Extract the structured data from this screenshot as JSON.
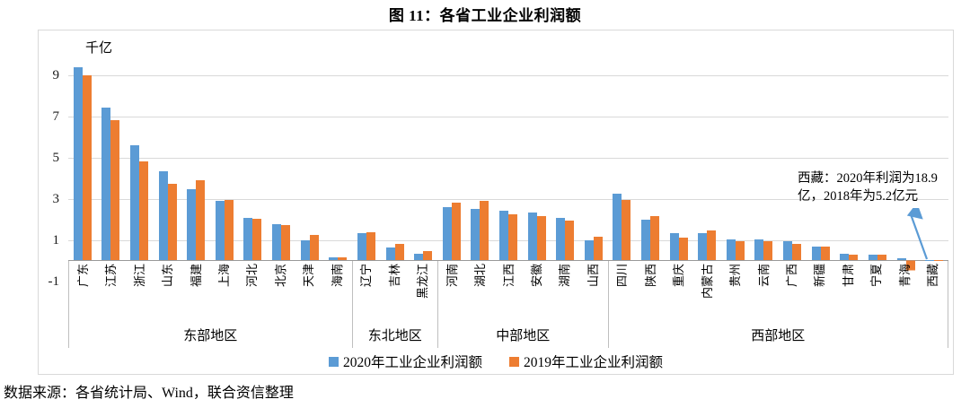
{
  "figure": {
    "title": "图 11：各省工业企业利润额",
    "source_note": "数据来源：各省统计局、Wind，联合资信整理"
  },
  "annotation": {
    "line1": "西藏：2020年利润为18.9",
    "line2": "亿，2018年为5.2亿元",
    "full_text": "西藏：2020年利润为18.9亿，2018年为5.2亿元"
  },
  "chart_data": {
    "type": "bar",
    "title": "图 11：各省工业企业利润额",
    "unit_label": "千亿",
    "ylabel": "千亿",
    "ylim": [
      -1,
      10
    ],
    "y_ticks": [
      9,
      7,
      5,
      3,
      1,
      -1
    ],
    "grid_values": [
      1,
      3,
      5,
      7,
      9
    ],
    "legend_position": "bottom",
    "series": [
      {
        "name": "2020年工业企业利润额",
        "color": "#5B9BD5"
      },
      {
        "name": "2019年工业企业利润额",
        "color": "#ED7D31"
      }
    ],
    "groups": [
      {
        "label": "东部地区",
        "provinces": [
          {
            "name": "广东",
            "values": [
              9.35,
              8.95
            ]
          },
          {
            "name": "江苏",
            "values": [
              7.4,
              6.8
            ]
          },
          {
            "name": "浙江",
            "values": [
              5.55,
              4.8
            ]
          },
          {
            "name": "山东",
            "values": [
              4.3,
              3.7
            ]
          },
          {
            "name": "福建",
            "values": [
              3.45,
              3.85
            ]
          },
          {
            "name": "上海",
            "values": [
              2.85,
              2.9
            ]
          },
          {
            "name": "河北",
            "values": [
              2.05,
              2.0
            ]
          },
          {
            "name": "北京",
            "values": [
              1.75,
              1.7
            ]
          },
          {
            "name": "天津",
            "values": [
              0.95,
              1.2
            ]
          },
          {
            "name": "海南",
            "values": [
              0.12,
              0.15
            ]
          }
        ]
      },
      {
        "label": "东北地区",
        "provinces": [
          {
            "name": "辽宁",
            "values": [
              1.3,
              1.35
            ]
          },
          {
            "name": "吉林",
            "values": [
              0.6,
              0.8
            ]
          },
          {
            "name": "黑龙江",
            "values": [
              0.3,
              0.45
            ]
          }
        ]
      },
      {
        "label": "中部地区",
        "provinces": [
          {
            "name": "河南",
            "values": [
              2.55,
              2.8
            ]
          },
          {
            "name": "湖北",
            "values": [
              2.5,
              2.85
            ]
          },
          {
            "name": "江西",
            "values": [
              2.4,
              2.2
            ]
          },
          {
            "name": "安徽",
            "values": [
              2.3,
              2.15
            ]
          },
          {
            "name": "湖南",
            "values": [
              2.05,
              1.9
            ]
          },
          {
            "name": "山西",
            "values": [
              0.95,
              1.15
            ]
          }
        ]
      },
      {
        "label": "西部地区",
        "provinces": [
          {
            "name": "四川",
            "values": [
              3.2,
              2.9
            ]
          },
          {
            "name": "陕西",
            "values": [
              1.95,
              2.15
            ]
          },
          {
            "name": "重庆",
            "values": [
              1.3,
              1.1
            ]
          },
          {
            "name": "内蒙古",
            "values": [
              1.3,
              1.45
            ]
          },
          {
            "name": "贵州",
            "values": [
              1.0,
              0.9
            ]
          },
          {
            "name": "云南",
            "values": [
              1.0,
              0.9
            ]
          },
          {
            "name": "广西",
            "values": [
              0.9,
              0.8
            ]
          },
          {
            "name": "新疆",
            "values": [
              0.65,
              0.65
            ]
          },
          {
            "name": "甘肃",
            "values": [
              0.3,
              0.28
            ]
          },
          {
            "name": "宁夏",
            "values": [
              0.25,
              0.28
            ]
          },
          {
            "name": "青海",
            "values": [
              0.1,
              -0.5
            ]
          },
          {
            "name": "西藏",
            "values": [
              0.02,
              0.01
            ]
          }
        ]
      }
    ]
  }
}
